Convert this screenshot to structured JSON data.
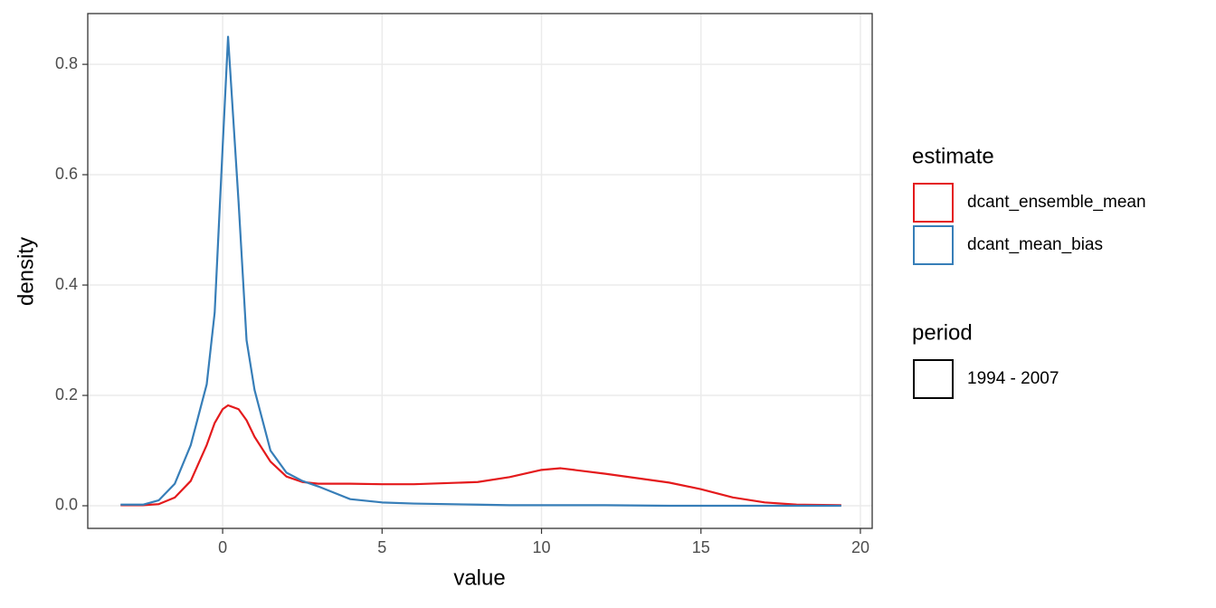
{
  "chart_data": {
    "type": "line",
    "x_label": "value",
    "y_label": "density",
    "x": [
      -3.2,
      -2.5,
      -2,
      -1.5,
      -1,
      -0.5,
      -0.25,
      0,
      0.17,
      0.5,
      0.75,
      1,
      1.5,
      2,
      2.5,
      3,
      4,
      5,
      6,
      8,
      9,
      10,
      10.6,
      12,
      14,
      15,
      16,
      17,
      18,
      19.4
    ],
    "series": [
      {
        "name": "dcant_ensemble_mean",
        "color": "#e41a1c",
        "values": [
          0.001,
          0.001,
          0.003,
          0.015,
          0.045,
          0.11,
          0.15,
          0.175,
          0.182,
          0.175,
          0.155,
          0.125,
          0.08,
          0.053,
          0.043,
          0.04,
          0.04,
          0.039,
          0.039,
          0.043,
          0.052,
          0.065,
          0.068,
          0.058,
          0.042,
          0.03,
          0.015,
          0.006,
          0.002,
          0.001
        ]
      },
      {
        "name": "dcant_mean_bias",
        "color": "#377eb8",
        "values": [
          0.002,
          0.002,
          0.01,
          0.04,
          0.11,
          0.22,
          0.35,
          0.65,
          0.85,
          0.55,
          0.3,
          0.21,
          0.1,
          0.06,
          0.045,
          0.035,
          0.012,
          0.006,
          0.004,
          0.002,
          0.001,
          0.001,
          0.001,
          0.001,
          0,
          0,
          0,
          0,
          0,
          0
        ]
      }
    ],
    "color_legend_title": "estimate",
    "period_legend": {
      "title": "period",
      "labels": [
        "1994 - 2007"
      ],
      "color": "#000000"
    },
    "xlim": [
      -4.23,
      20.37
    ],
    "ylim": [
      -0.041,
      0.892
    ],
    "xticks": [
      0,
      5,
      10,
      15,
      20
    ],
    "yticks": [
      {
        "value": 0,
        "label": "0.0"
      },
      {
        "value": 0.2,
        "label": "0.2"
      },
      {
        "value": 0.4,
        "label": "0.4"
      },
      {
        "value": 0.6,
        "label": "0.6"
      },
      {
        "value": 0.8,
        "label": "0.8"
      }
    ],
    "grid": true
  }
}
